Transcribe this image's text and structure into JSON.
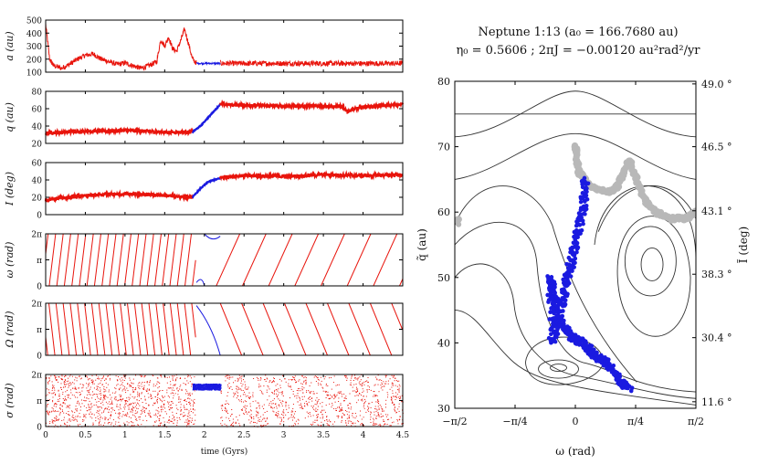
{
  "colors": {
    "red": "#e8140c",
    "blue": "#1a1ae0",
    "gray": "#b8b8b8",
    "contour": "#333333",
    "axis": "#000000"
  },
  "left": {
    "time_axis": {
      "label": "time (Gyrs)",
      "ticks": [
        "0",
        "0.5",
        "1",
        "1.5",
        "2",
        "2.5",
        "3",
        "3.5",
        "4",
        "4.5"
      ],
      "range": [
        0,
        4.5
      ]
    },
    "panels": [
      {
        "id": "a",
        "ylabel": "a (au)",
        "ymin": 100,
        "ymax": 500,
        "yticks": [
          "100",
          "200",
          "300",
          "400",
          "500"
        ]
      },
      {
        "id": "q",
        "ylabel": "q (au)",
        "ymin": 20,
        "ymax": 80,
        "yticks": [
          "20",
          "40",
          "60",
          "80"
        ]
      },
      {
        "id": "I",
        "ylabel": "I (deg)",
        "ymin": 0,
        "ymax": 60,
        "yticks": [
          "0",
          "20",
          "40",
          "60"
        ]
      },
      {
        "id": "omega",
        "ylabel": "ω (rad)",
        "ymin": 0,
        "ymax": 6.283,
        "yticks": [
          "0",
          "π",
          "2π"
        ]
      },
      {
        "id": "Omega",
        "ylabel": "Ω (rad)",
        "ymin": 0,
        "ymax": 6.283,
        "yticks": [
          "0",
          "π",
          "2π"
        ]
      },
      {
        "id": "sigma",
        "ylabel": "σ (rad)",
        "ymin": 0,
        "ymax": 6.283,
        "yticks": [
          "0",
          "π",
          "2π"
        ]
      }
    ]
  },
  "right": {
    "title_line1": "Neptune 1:13 (a₀ = 166.7680 au)",
    "title_line2": "η₀ = 0.5606  ;  2πJ = −0.00120 au²rad²/yr",
    "xlabel": "ω (rad)",
    "ylabel_left": "q̃ (au)",
    "ylabel_right": "Ĩ (deg)",
    "xticks": [
      "−π/2",
      "−π/4",
      "0",
      "π/4",
      "π/2"
    ],
    "xrange": [
      -1.5708,
      1.5708
    ],
    "yticks_left": [
      "30",
      "40",
      "50",
      "60",
      "70",
      "80"
    ],
    "yrange_left": [
      30,
      80
    ],
    "yticks_right": [
      {
        "q": 31.0,
        "label": "11.6 °"
      },
      {
        "q": 40.8,
        "label": "30.4 °"
      },
      {
        "q": 50.5,
        "label": "38.3 °"
      },
      {
        "q": 60.2,
        "label": "43.1 °"
      },
      {
        "q": 70.0,
        "label": "46.5 °"
      },
      {
        "q": 79.6,
        "label": "49.0 °"
      }
    ]
  },
  "chart_data": [
    {
      "type": "line",
      "panel": "a",
      "ylabel": "a (au)",
      "ylim": [
        100,
        500
      ],
      "xlabel": "time (Gyrs)",
      "xlim": [
        0,
        4.5
      ],
      "series": [
        {
          "color": "red",
          "x": [
            0,
            0.05,
            0.1,
            0.2,
            0.3,
            0.4,
            0.5,
            0.6,
            0.7,
            0.8,
            0.9,
            1.0,
            1.1,
            1.2,
            1.3,
            1.4,
            1.45,
            1.5,
            1.55,
            1.6,
            1.65,
            1.7,
            1.75,
            1.8,
            1.85,
            1.9
          ],
          "values": [
            470,
            200,
            150,
            130,
            160,
            200,
            230,
            240,
            200,
            180,
            160,
            170,
            150,
            130,
            150,
            180,
            350,
            300,
            370,
            280,
            260,
            340,
            430,
            320,
            200,
            170
          ]
        },
        {
          "color": "blue",
          "x": [
            1.9,
            2.2
          ],
          "values": [
            168,
            167
          ]
        },
        {
          "color": "red",
          "x": [
            2.2,
            4.5
          ],
          "values": [
            167,
            167
          ]
        }
      ]
    },
    {
      "type": "line",
      "panel": "q",
      "ylabel": "q (au)",
      "ylim": [
        20,
        80
      ],
      "series": [
        {
          "color": "red",
          "x": [
            0,
            0.5,
            1.0,
            1.5,
            1.85
          ],
          "values": [
            32,
            34,
            35,
            33,
            33
          ]
        },
        {
          "color": "blue",
          "x": [
            1.85,
            1.95,
            2.05,
            2.15,
            2.2
          ],
          "values": [
            33,
            40,
            50,
            60,
            65
          ]
        },
        {
          "color": "red",
          "x": [
            2.2,
            2.5,
            3.0,
            3.5,
            3.75,
            3.8,
            4.0,
            4.5
          ],
          "values": [
            65,
            64,
            63,
            63,
            62,
            57,
            62,
            65
          ]
        }
      ]
    },
    {
      "type": "line",
      "panel": "I",
      "ylabel": "I (deg)",
      "ylim": [
        0,
        60
      ],
      "series": [
        {
          "color": "red",
          "x": [
            0,
            0.5,
            1.0,
            1.5,
            1.85
          ],
          "values": [
            17,
            22,
            24,
            22,
            20
          ]
        },
        {
          "color": "blue",
          "x": [
            1.85,
            1.95,
            2.05,
            2.2
          ],
          "values": [
            20,
            30,
            38,
            42
          ]
        },
        {
          "color": "red",
          "x": [
            2.2,
            2.5,
            3.0,
            3.5,
            4.0,
            4.5
          ],
          "values": [
            43,
            45,
            44,
            46,
            45,
            46
          ]
        }
      ]
    },
    {
      "type": "line",
      "panel": "omega",
      "ylabel": "ω (rad)",
      "ylim": [
        0,
        6.283
      ],
      "description_values": {
        "fast_circulation_until": 1.9,
        "libration_blue": [
          1.9,
          2.2
        ],
        "slow_circulation_after": 2.2
      }
    },
    {
      "type": "line",
      "panel": "Omega",
      "ylabel": "Ω (rad)",
      "ylim": [
        0,
        6.283
      ]
    },
    {
      "type": "scatter",
      "panel": "sigma",
      "ylabel": "σ (rad)",
      "ylim": [
        0,
        6.283
      ],
      "blue_band": {
        "x": [
          1.85,
          2.2
        ],
        "y": [
          4.3,
          5.3
        ]
      }
    },
    {
      "type": "scatter",
      "panel": "phase_portrait",
      "title": "Neptune 1:13 (a₀ = 166.7680 au)",
      "xlabel": "ω (rad)",
      "ylabel": "q̃ (au)",
      "xlim": [
        -1.5708,
        1.5708
      ],
      "ylim": [
        30,
        80
      ],
      "series": [
        {
          "color": "blue",
          "x": [
            0.13,
            0.1,
            0.0,
            -0.1,
            -0.2,
            -0.3,
            -0.32,
            -0.28,
            -0.2,
            -0.05,
            0.1,
            0.25,
            0.4,
            0.6,
            0.7
          ],
          "values": [
            65,
            60,
            55,
            50,
            45,
            40,
            50,
            47,
            43,
            41,
            40,
            38,
            37,
            34,
            33
          ]
        },
        {
          "color": "gray",
          "x": [
            0.0,
            0.05,
            0.2,
            0.45,
            0.55,
            0.7,
            0.9,
            1.05,
            1.25,
            1.45,
            1.57
          ],
          "values": [
            70,
            66,
            64,
            63,
            64,
            68,
            62,
            60,
            59,
            59,
            60
          ]
        }
      ]
    }
  ]
}
